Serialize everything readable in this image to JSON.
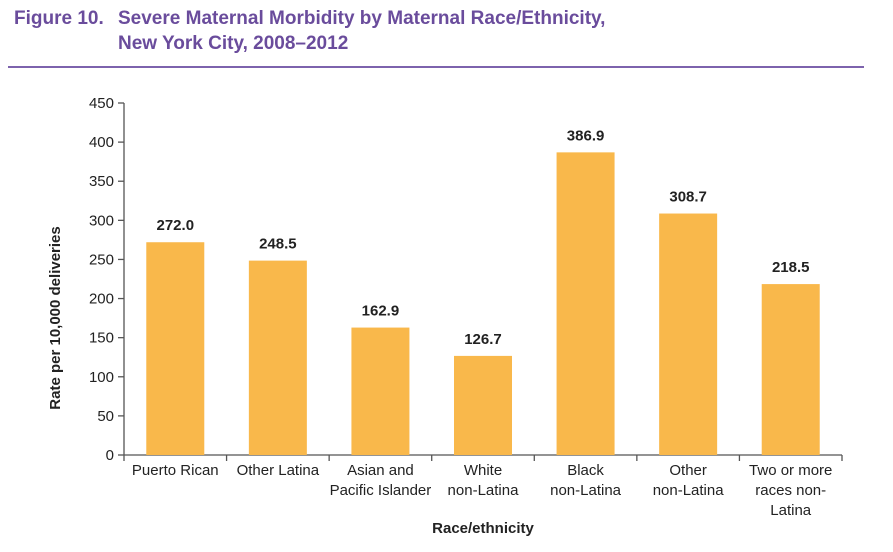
{
  "figure": {
    "number_label": "Figure 10.",
    "title_line1": "Severe Maternal Morbidity by Maternal Race/Ethnicity,",
    "title_line2": "New York City, 2008–2012"
  },
  "colors": {
    "title": "#6a4c9c",
    "rule": "#7d63ad",
    "bar": "#f9b84b",
    "axis": "#555555",
    "text": "#222222"
  },
  "chart_data": {
    "type": "bar",
    "title": "Severe Maternal Morbidity by Maternal Race/Ethnicity, New York City, 2008–2012",
    "xlabel": "Race/ethnicity",
    "ylabel": "Rate per 10,000 deliveries",
    "ylim": [
      0,
      450
    ],
    "yticks": [
      0,
      50,
      100,
      150,
      200,
      250,
      300,
      350,
      400,
      450
    ],
    "grid": false,
    "legend": "none",
    "categories": [
      [
        "Puerto Rican"
      ],
      [
        "Other Latina"
      ],
      [
        "Asian and",
        "Pacific Islander"
      ],
      [
        "White",
        "non-Latina"
      ],
      [
        "Black",
        "non-Latina"
      ],
      [
        "Other",
        "non-Latina"
      ],
      [
        "Two or more",
        "races non-",
        "Latina"
      ]
    ],
    "values": [
      272.0,
      248.5,
      162.9,
      126.7,
      386.9,
      308.7,
      218.5
    ],
    "data_labels": [
      "272.0",
      "248.5",
      "162.9",
      "126.7",
      "386.9",
      "308.7",
      "218.5"
    ]
  }
}
